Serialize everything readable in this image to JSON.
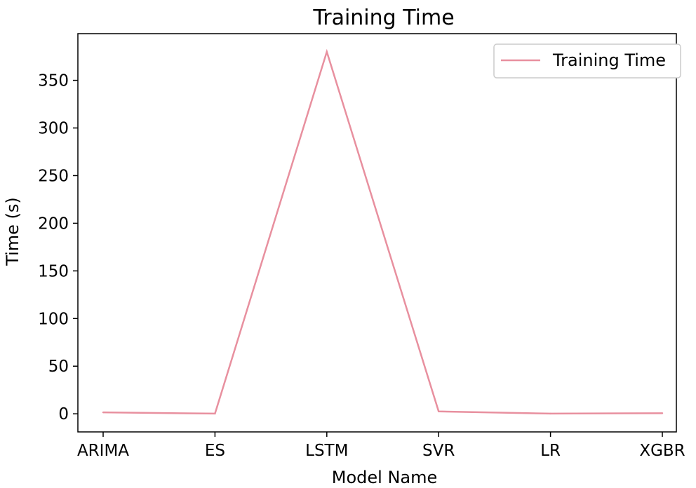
{
  "chart_data": {
    "type": "line",
    "title": "Training Time",
    "xlabel": "Model Name",
    "ylabel": "Time (s)",
    "categories": [
      "ARIMA",
      "ES",
      "LSTM",
      "SVR",
      "LR",
      "XGBR"
    ],
    "series": [
      {
        "name": "Training Time",
        "values": [
          1.5,
          0.2,
          380,
          2.5,
          0.2,
          0.6
        ],
        "color": "#e8909f"
      }
    ],
    "yticks": [
      0,
      50,
      100,
      150,
      200,
      250,
      300,
      350
    ],
    "ylim": [
      -19,
      399
    ],
    "grid": false,
    "legend_position": "top-right"
  }
}
